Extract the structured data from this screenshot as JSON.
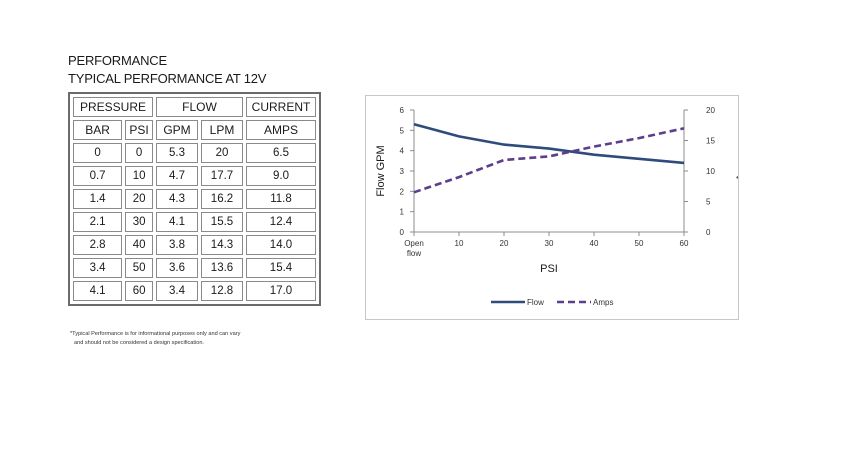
{
  "heading": {
    "line1": "PERFORMANCE",
    "line2": "TYPICAL PERFORMANCE AT 12V"
  },
  "table": {
    "group_headers": [
      "PRESSURE",
      "FLOW",
      "CURRENT"
    ],
    "column_headers": [
      "BAR",
      "PSI",
      "GPM",
      "LPM",
      "AMPS"
    ],
    "rows": [
      [
        "0",
        "0",
        "5.3",
        "20",
        "6.5"
      ],
      [
        "0.7",
        "10",
        "4.7",
        "17.7",
        "9.0"
      ],
      [
        "1.4",
        "20",
        "4.3",
        "16.2",
        "11.8"
      ],
      [
        "2.1",
        "30",
        "4.1",
        "15.5",
        "12.4"
      ],
      [
        "2.8",
        "40",
        "3.8",
        "14.3",
        "14.0"
      ],
      [
        "3.4",
        "50",
        "3.6",
        "13.6",
        "15.4"
      ],
      [
        "4.1",
        "60",
        "3.4",
        "12.8",
        "17.0"
      ]
    ]
  },
  "note": {
    "line1": "*Typical Performance is for informational purposes only and can vary",
    "line2": "and should not be considered a design specification."
  },
  "chart_data": {
    "type": "line",
    "x": [
      0,
      10,
      20,
      30,
      40,
      50,
      60
    ],
    "x_tick_labels": [
      "Open flow",
      "10",
      "20",
      "30",
      "40",
      "50",
      "60"
    ],
    "xlabel": "PSI",
    "ylabel": "Flow GPM",
    "y2label": "Amps",
    "ylim": [
      0,
      6
    ],
    "y2lim": [
      0,
      20
    ],
    "y_ticks": [
      "0",
      "1",
      "2",
      "3",
      "4",
      "5",
      "6"
    ],
    "y2_ticks": [
      "0",
      "5",
      "10",
      "15",
      "20"
    ],
    "grid": false,
    "legend_position": "bottom",
    "series": [
      {
        "name": "Flow",
        "axis": "left",
        "style": "solid",
        "color": "#2e4b7c",
        "values": [
          5.3,
          4.7,
          4.3,
          4.1,
          3.8,
          3.6,
          3.4
        ]
      },
      {
        "name": "Amps",
        "axis": "right",
        "style": "dashed",
        "color": "#5b3f8c",
        "values": [
          6.5,
          9.0,
          11.8,
          12.4,
          14.0,
          15.4,
          17.0
        ]
      }
    ]
  }
}
